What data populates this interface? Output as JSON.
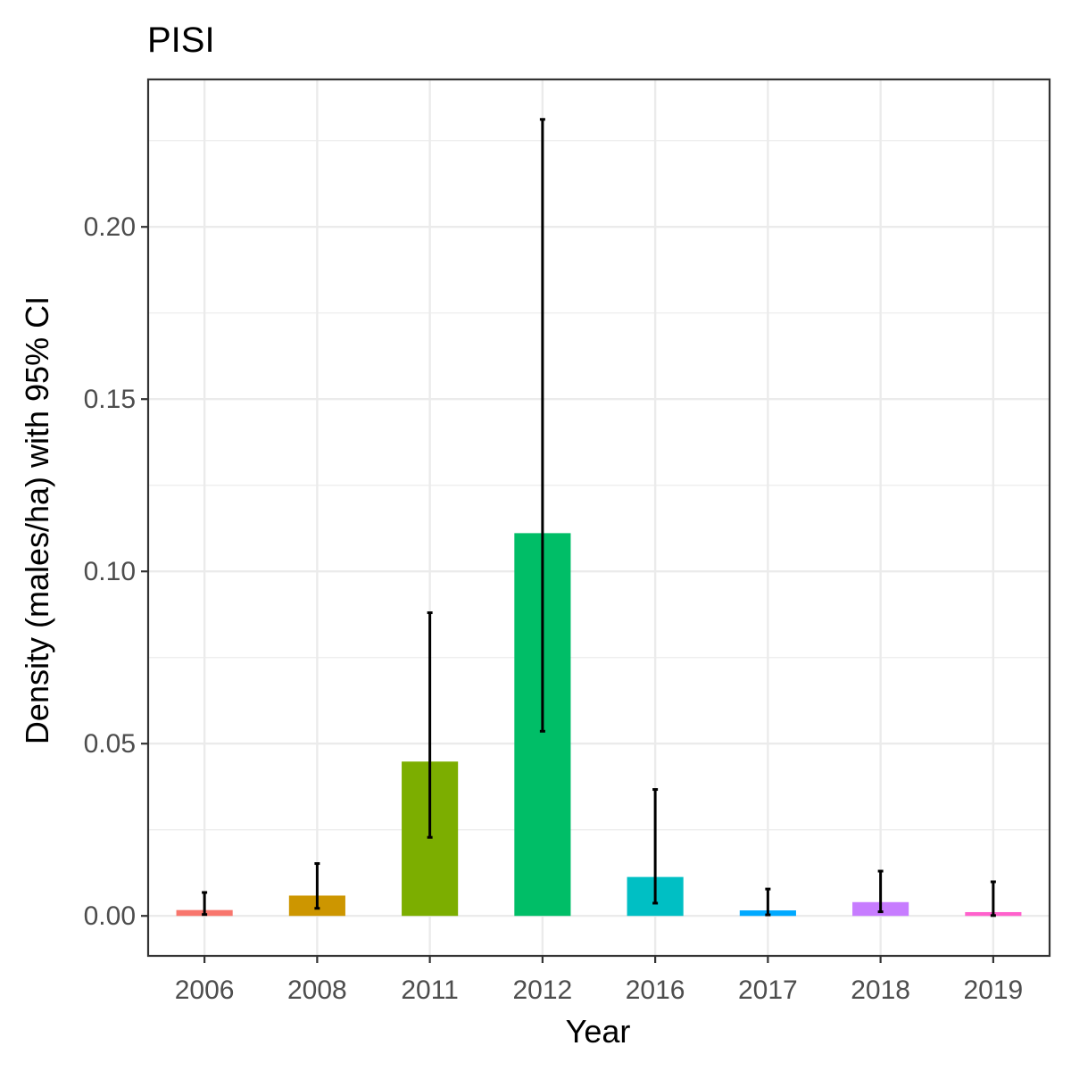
{
  "chart_data": {
    "type": "bar",
    "title": "PISI",
    "xlabel": "Year",
    "ylabel": "Density (males/ha) with 95% CI",
    "categories": [
      "2006",
      "2008",
      "2011",
      "2012",
      "2016",
      "2017",
      "2018",
      "2019"
    ],
    "values": [
      0.0017,
      0.0059,
      0.0448,
      0.1111,
      0.0113,
      0.0016,
      0.004,
      0.0011
    ],
    "ci_lower": [
      0.0004,
      0.0022,
      0.0228,
      0.0536,
      0.0037,
      0.0003,
      0.0012,
      0.0001
    ],
    "ci_upper": [
      0.0068,
      0.0152,
      0.088,
      0.2312,
      0.0367,
      0.0078,
      0.013,
      0.0099
    ],
    "colors": [
      "#F8766D",
      "#CD9600",
      "#7CAE00",
      "#00BE67",
      "#00BFC4",
      "#00A9FF",
      "#C77CFF",
      "#FF61CC"
    ],
    "ylim": [
      -0.0116,
      0.2428
    ],
    "yticks": [
      "0.00",
      "0.05",
      "0.10",
      "0.15",
      "0.20"
    ],
    "grid": true,
    "legend": "none",
    "error_bar_color": "#000000"
  }
}
